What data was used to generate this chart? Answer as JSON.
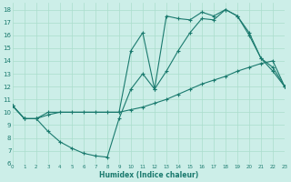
{
  "xlabel": "Humidex (Indice chaleur)",
  "bg_color": "#cceee8",
  "grid_color": "#aaddcc",
  "line_color": "#1a7a6e",
  "series1_x": [
    0,
    1,
    2,
    3,
    4,
    5,
    6,
    7,
    8,
    9,
    10,
    11,
    12,
    13,
    14,
    15,
    16,
    17,
    18,
    19,
    20,
    21,
    22,
    23
  ],
  "series1_y": [
    10.5,
    9.5,
    9.5,
    9.8,
    10.0,
    10.0,
    10.0,
    10.0,
    10.0,
    10.0,
    10.2,
    10.4,
    10.7,
    11.0,
    11.4,
    11.8,
    12.2,
    12.5,
    12.8,
    13.2,
    13.5,
    13.8,
    14.0,
    12.0
  ],
  "series2_x": [
    0,
    1,
    2,
    3,
    4,
    5,
    6,
    7,
    8,
    9,
    10,
    11,
    12,
    13,
    14,
    15,
    16,
    17,
    18,
    19,
    20,
    21,
    22,
    23
  ],
  "series2_y": [
    10.5,
    9.5,
    9.5,
    8.5,
    7.7,
    7.2,
    6.8,
    6.6,
    6.5,
    9.5,
    11.8,
    13.0,
    11.8,
    13.2,
    14.8,
    16.2,
    17.3,
    17.2,
    18.0,
    17.5,
    16.0,
    14.2,
    13.2,
    12.0
  ],
  "series3_x": [
    0,
    1,
    2,
    3,
    9,
    10,
    11,
    12,
    13,
    14,
    15,
    16,
    17,
    18,
    19,
    20,
    21,
    22,
    23
  ],
  "series3_y": [
    10.5,
    9.5,
    9.5,
    10.0,
    10.0,
    14.8,
    16.2,
    11.8,
    17.5,
    17.3,
    17.2,
    17.8,
    17.5,
    18.0,
    17.5,
    16.2,
    14.2,
    13.5,
    12.0
  ],
  "xlim": [
    0,
    23
  ],
  "ylim": [
    6,
    18.5
  ],
  "yticks": [
    6,
    7,
    8,
    9,
    10,
    11,
    12,
    13,
    14,
    15,
    16,
    17,
    18
  ],
  "xticks": [
    0,
    1,
    2,
    3,
    4,
    5,
    6,
    7,
    8,
    9,
    10,
    11,
    12,
    13,
    14,
    15,
    16,
    17,
    18,
    19,
    20,
    21,
    22,
    23
  ]
}
